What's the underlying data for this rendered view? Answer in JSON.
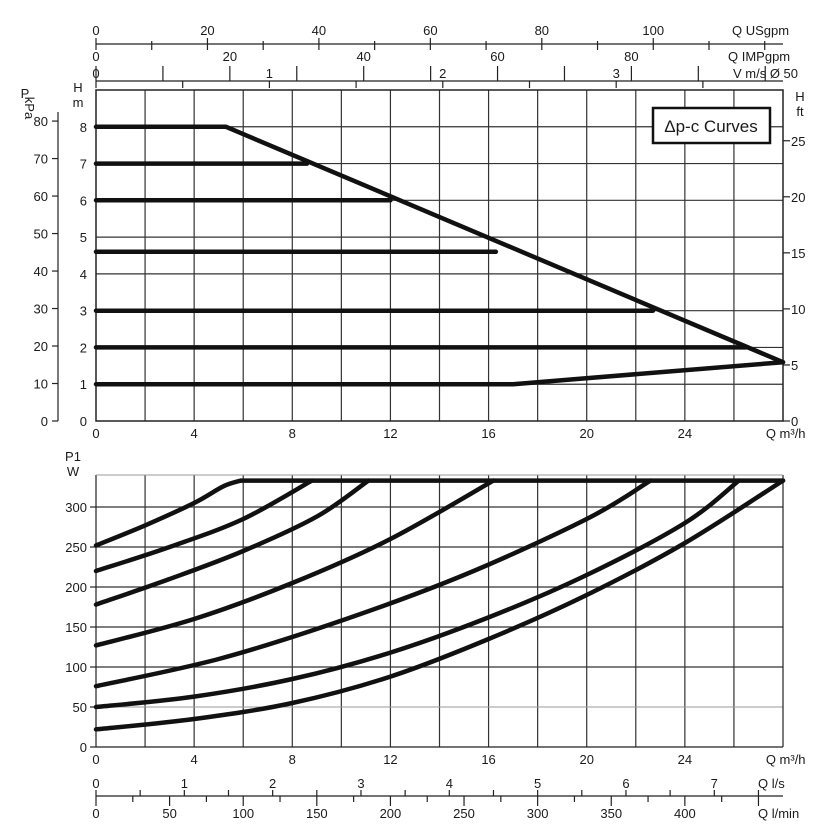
{
  "chart_data": [
    {
      "id": "head",
      "type": "line",
      "title": "Δp-c Curves",
      "xlabel": "Q m³/h",
      "ylabel_left": "H m",
      "ylabel_pressure": "P kPa",
      "ylabel_right": "H ft",
      "xlim": [
        0,
        28
      ],
      "ylim": [
        0,
        9
      ],
      "xticks": [
        0,
        4,
        8,
        12,
        16,
        20,
        24
      ],
      "yticks": [
        0,
        1,
        2,
        3,
        4,
        5,
        6,
        7,
        8
      ],
      "pressure_ticks": [
        0,
        10,
        20,
        30,
        40,
        50,
        60,
        70,
        80
      ],
      "feet_ticks": [
        0,
        5,
        10,
        15,
        20,
        25
      ],
      "top_axes": [
        {
          "label": "Q USgpm",
          "ticks": [
            0,
            20,
            40,
            60,
            80,
            100
          ],
          "per_m3h": 4.4029
        },
        {
          "label": "Q IMPgpm",
          "ticks": [
            0,
            20,
            40,
            60,
            80
          ],
          "per_m3h": 3.6662
        },
        {
          "label": "V m/s Ø 50",
          "ticks": [
            0,
            1,
            2,
            3
          ],
          "per_m3h": 0.1415
        }
      ],
      "series": [
        {
          "name": "8 m",
          "x": [
            0,
            5.3,
            28
          ],
          "y": [
            8,
            8,
            1.6
          ]
        },
        {
          "name": "7 m",
          "x": [
            0,
            8.6
          ],
          "y": [
            7,
            7
          ]
        },
        {
          "name": "6 m",
          "x": [
            0,
            12
          ],
          "y": [
            6,
            6
          ]
        },
        {
          "name": "4.6 m",
          "x": [
            0,
            16.3
          ],
          "y": [
            4.6,
            4.6
          ]
        },
        {
          "name": "3 m",
          "x": [
            0,
            22.7
          ],
          "y": [
            3,
            3
          ]
        },
        {
          "name": "2 m",
          "x": [
            0,
            26.5
          ],
          "y": [
            2,
            2
          ]
        },
        {
          "name": "1 m",
          "x": [
            0,
            17,
            28
          ],
          "y": [
            1,
            1,
            1.6
          ]
        }
      ]
    },
    {
      "id": "power",
      "type": "line",
      "xlabel": "Q m³/h",
      "ylabel": "P1 W",
      "xlim": [
        0,
        28
      ],
      "ylim": [
        0,
        340
      ],
      "xticks": [
        0,
        4,
        8,
        12,
        16,
        20,
        24
      ],
      "yticks": [
        0,
        50,
        100,
        150,
        200,
        250,
        300
      ],
      "max_power": 333,
      "bottom_axes": [
        {
          "label": "Q l/s",
          "ticks": [
            0,
            1,
            2,
            3,
            4,
            5,
            6,
            7
          ],
          "per_m3h": 0.27778
        },
        {
          "label": "Q l/min",
          "ticks": [
            0,
            50,
            100,
            150,
            200,
            250,
            300,
            350,
            400
          ],
          "per_m3h": 16.6667
        }
      ],
      "series": [
        {
          "name": "8 m",
          "x": [
            0,
            2,
            4,
            5.2,
            5.9
          ],
          "y": [
            252,
            277,
            305,
            326,
            333
          ]
        },
        {
          "name": "7 m",
          "x": [
            0,
            3,
            6,
            8.8
          ],
          "y": [
            220,
            250,
            285,
            333
          ]
        },
        {
          "name": "6 m",
          "x": [
            0,
            3,
            6,
            9,
            11.1
          ],
          "y": [
            178,
            210,
            245,
            288,
            333
          ]
        },
        {
          "name": "4.6 m",
          "x": [
            0,
            4,
            8,
            12,
            16.2
          ],
          "y": [
            127,
            160,
            205,
            260,
            333
          ]
        },
        {
          "name": "3 m",
          "x": [
            0,
            5,
            10,
            15,
            20,
            22.6
          ],
          "y": [
            76,
            110,
            158,
            215,
            285,
            333
          ]
        },
        {
          "name": "2 m",
          "x": [
            0,
            4,
            8,
            12,
            16,
            20,
            24,
            26.2
          ],
          "y": [
            50,
            63,
            85,
            118,
            162,
            215,
            280,
            333
          ]
        },
        {
          "name": "1 m",
          "x": [
            0,
            4,
            8,
            12,
            16,
            20,
            24,
            28
          ],
          "y": [
            22,
            35,
            55,
            88,
            135,
            190,
            255,
            333
          ]
        }
      ]
    }
  ]
}
